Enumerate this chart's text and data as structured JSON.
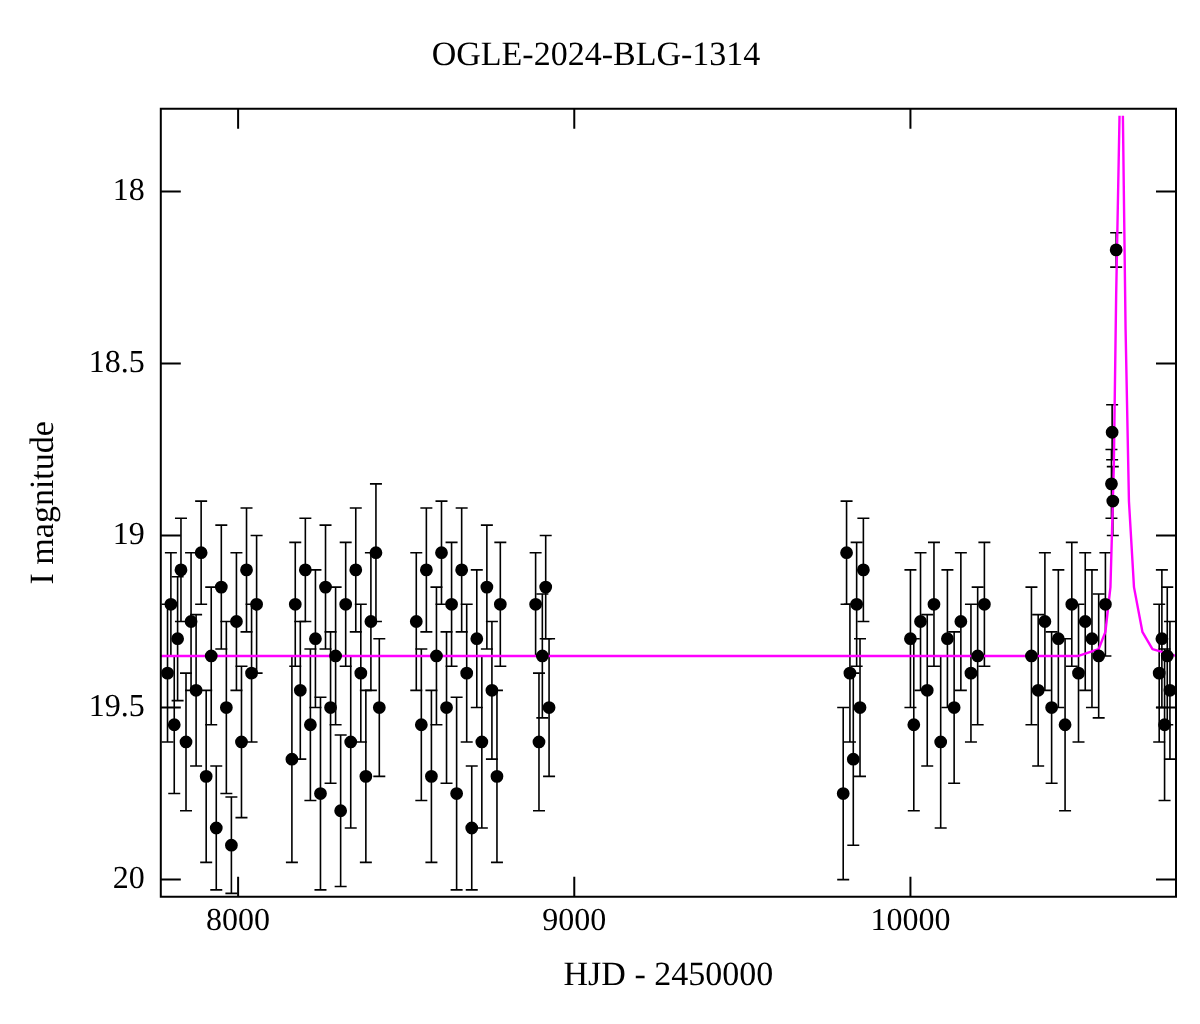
{
  "chart_data": {
    "type": "scatter",
    "title": "OGLE-2024-BLG-1314",
    "xlabel": "HJD - 2450000",
    "ylabel": "I magnitude",
    "xlim": [
      7770,
      10790
    ],
    "xticks": [
      8000,
      9000,
      10000
    ],
    "ylim": [
      20.05,
      17.76
    ],
    "yticks": [
      18,
      18.5,
      19,
      19.5,
      20
    ],
    "grid": false,
    "legend": false,
    "marker": "circle",
    "series": [
      {
        "color": "#000000",
        "x": [
          7790,
          7800,
          7810,
          7820,
          7830,
          7845,
          7860,
          7875,
          7890,
          7905,
          7920,
          7935,
          7950,
          7965,
          7980,
          7995,
          8010,
          8025,
          8040,
          8055,
          8160,
          8170,
          8185,
          8200,
          8215,
          8230,
          8245,
          8260,
          8275,
          8290,
          8305,
          8320,
          8335,
          8350,
          8365,
          8380,
          8395,
          8410,
          8420,
          8530,
          8545,
          8560,
          8575,
          8590,
          8605,
          8620,
          8635,
          8650,
          8665,
          8680,
          8695,
          8710,
          8725,
          8740,
          8755,
          8770,
          8780,
          8885,
          8895,
          8905,
          8915,
          8925,
          9800,
          9810,
          9820,
          9830,
          9840,
          9850,
          9860,
          10000,
          10010,
          10030,
          10050,
          10070,
          10090,
          10110,
          10130,
          10150,
          10180,
          10200,
          10220,
          10360,
          10380,
          10400,
          10420,
          10440,
          10460,
          10480,
          10500,
          10520,
          10540,
          10560,
          10580,
          10598,
          10600,
          10602,
          10612,
          10740,
          10748,
          10756,
          10764,
          10772
        ],
        "values": [
          19.4,
          19.2,
          19.55,
          19.3,
          19.1,
          19.6,
          19.25,
          19.45,
          19.05,
          19.7,
          19.35,
          19.85,
          19.15,
          19.5,
          19.9,
          19.25,
          19.6,
          19.1,
          19.4,
          19.2,
          19.65,
          19.2,
          19.45,
          19.1,
          19.55,
          19.3,
          19.75,
          19.15,
          19.5,
          19.35,
          19.8,
          19.2,
          19.6,
          19.1,
          19.4,
          19.7,
          19.25,
          19.05,
          19.5,
          19.25,
          19.55,
          19.1,
          19.7,
          19.35,
          19.05,
          19.5,
          19.2,
          19.75,
          19.1,
          19.4,
          19.85,
          19.3,
          19.6,
          19.15,
          19.45,
          19.7,
          19.2,
          19.2,
          19.6,
          19.35,
          19.15,
          19.5,
          19.75,
          19.05,
          19.4,
          19.65,
          19.2,
          19.5,
          19.1,
          19.3,
          19.55,
          19.25,
          19.45,
          19.2,
          19.6,
          19.3,
          19.5,
          19.25,
          19.4,
          19.35,
          19.2,
          19.35,
          19.45,
          19.25,
          19.5,
          19.3,
          19.55,
          19.2,
          19.4,
          19.25,
          19.3,
          19.35,
          19.2,
          18.85,
          18.7,
          18.9,
          18.17,
          19.4,
          19.3,
          19.55,
          19.35,
          19.45
        ],
        "errors": [
          0.2,
          0.15,
          0.2,
          0.18,
          0.15,
          0.2,
          0.2,
          0.22,
          0.15,
          0.25,
          0.2,
          0.18,
          0.18,
          0.25,
          0.14,
          0.2,
          0.22,
          0.18,
          0.2,
          0.2,
          0.3,
          0.18,
          0.2,
          0.15,
          0.22,
          0.2,
          0.28,
          0.18,
          0.22,
          0.2,
          0.22,
          0.18,
          0.25,
          0.18,
          0.2,
          0.25,
          0.2,
          0.2,
          0.2,
          0.2,
          0.22,
          0.18,
          0.25,
          0.2,
          0.15,
          0.22,
          0.18,
          0.28,
          0.18,
          0.2,
          0.18,
          0.2,
          0.25,
          0.18,
          0.2,
          0.25,
          0.18,
          0.15,
          0.2,
          0.18,
          0.15,
          0.2,
          0.25,
          0.15,
          0.2,
          0.25,
          0.18,
          0.2,
          0.15,
          0.2,
          0.25,
          0.2,
          0.22,
          0.18,
          0.25,
          0.2,
          0.22,
          0.2,
          0.2,
          0.2,
          0.18,
          0.2,
          0.22,
          0.2,
          0.22,
          0.2,
          0.25,
          0.18,
          0.2,
          0.2,
          0.2,
          0.18,
          0.15,
          0.1,
          0.08,
          0.1,
          0.05,
          0.2,
          0.2,
          0.22,
          0.2,
          0.2
        ]
      },
      {
        "type": "line",
        "color": "#ff00ff",
        "marker": "none",
        "x": [
          7770,
          10500,
          10560,
          10580,
          10595,
          10605,
          10612,
          10622,
          10627,
          10632,
          10640,
          10650,
          10665,
          10690,
          10720,
          10790
        ],
        "values": [
          19.35,
          19.35,
          19.33,
          19.28,
          19.15,
          18.8,
          18.3,
          17.78,
          null,
          17.78,
          18.4,
          18.9,
          19.15,
          19.28,
          19.33,
          19.35
        ]
      }
    ]
  }
}
